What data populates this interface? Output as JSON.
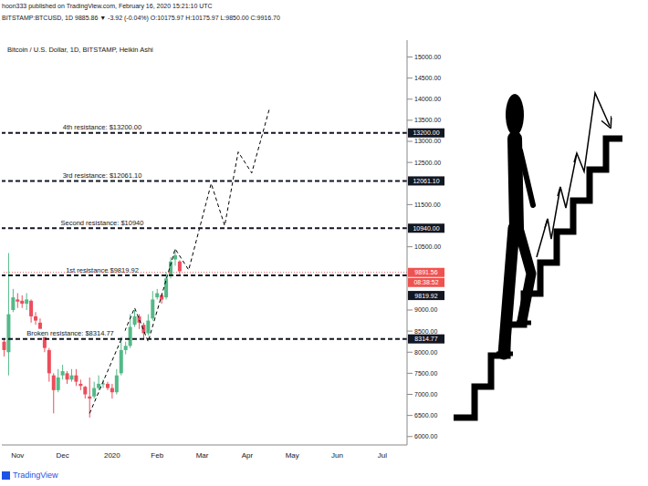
{
  "header": {
    "author_line": "hoon333 published on TradingView.com, February 16, 2020 15:21:10 UTC",
    "symbol_line": "BITSTAMP:BTCUSD, 1D 9885.86 ▼ -3.92 (-0.04%) O:10175.97 H:10175.97 L:9850.00 C:9916.70"
  },
  "footer": "TradingView",
  "chart_data": {
    "type": "candlestick",
    "title": "Bitcoin / U.S. Dollar, 1D, BITSTAMP, Heikin Ashi",
    "categories": [
      null,
      null,
      null,
      "Nov",
      null,
      null,
      null,
      null,
      null,
      null,
      null,
      null,
      null,
      "Dec",
      null,
      null,
      null,
      null,
      null,
      null,
      null,
      null,
      null,
      null,
      "2020",
      null,
      null,
      null,
      null,
      null,
      null,
      null,
      null,
      null,
      "Feb",
      null,
      null,
      null,
      null,
      null,
      null,
      null,
      null,
      null,
      "Mar",
      null,
      null,
      null,
      null,
      null,
      null,
      null,
      null,
      null,
      "Apr",
      null,
      null,
      null,
      null,
      null,
      null,
      null,
      null,
      null,
      "May",
      null,
      null,
      null,
      null,
      null,
      null,
      null,
      null,
      null,
      "Jun",
      null,
      null,
      null,
      null,
      null,
      null,
      null,
      null,
      null,
      "Jul",
      null,
      null,
      null,
      null,
      null
    ],
    "series": [
      {
        "type": "candlestick",
        "open": [
          8250,
          8000,
          9000,
          9250,
          9220,
          9150,
          9220,
          8850,
          8700,
          8450,
          8050,
          7450,
          7100,
          7450,
          7500,
          7350,
          7450,
          7250,
          7180,
          6950,
          6950,
          7150,
          7250,
          7250,
          7150,
          7050,
          7500,
          8050,
          8150,
          8650,
          8850,
          8650,
          8450,
          8800,
          9300,
          9350,
          9300,
          9800,
          10200,
          10150,
          null,
          null,
          null,
          null,
          null,
          null,
          null,
          null,
          null,
          null,
          null,
          null,
          null,
          null,
          null,
          null,
          null,
          null,
          null,
          null,
          null,
          null,
          null,
          null,
          null,
          null,
          null,
          null,
          null,
          null,
          null,
          null,
          null,
          null,
          null,
          null,
          null,
          null,
          null,
          null,
          null,
          null,
          null,
          null,
          null,
          null,
          null,
          null,
          null,
          null
        ],
        "high": [
          8300,
          10350,
          9500,
          9400,
          9350,
          9400,
          9250,
          8950,
          8800,
          8500,
          8100,
          7500,
          7600,
          7700,
          7550,
          7600,
          7600,
          7350,
          7200,
          7400,
          7300,
          7450,
          7350,
          7300,
          7250,
          7600,
          8400,
          8250,
          8900,
          9000,
          8900,
          8700,
          8900,
          9450,
          9500,
          9400,
          9900,
          10250,
          10450,
          10180,
          null,
          null,
          null,
          null,
          null,
          null,
          null,
          null,
          null,
          null,
          null,
          null,
          null,
          null,
          null,
          null,
          null,
          null,
          null,
          null,
          null,
          null,
          null,
          null,
          null,
          null,
          null,
          null,
          null,
          null,
          null,
          null,
          null,
          null,
          null,
          null,
          null,
          null,
          null,
          null,
          null,
          null,
          null,
          null,
          null,
          null,
          null,
          null,
          null,
          null
        ],
        "low": [
          7900,
          7450,
          8950,
          9050,
          9050,
          9000,
          8700,
          8650,
          8400,
          8000,
          7300,
          6550,
          7050,
          7350,
          7250,
          7300,
          7200,
          7100,
          6900,
          6450,
          6900,
          7100,
          7150,
          7100,
          6900,
          7000,
          7450,
          7950,
          8100,
          8600,
          8550,
          8300,
          8400,
          8750,
          9250,
          9150,
          9250,
          9750,
          10050,
          9850,
          null,
          null,
          null,
          null,
          null,
          null,
          null,
          null,
          null,
          null,
          null,
          null,
          null,
          null,
          null,
          null,
          null,
          null,
          null,
          null,
          null,
          null,
          null,
          null,
          null,
          null,
          null,
          null,
          null,
          null,
          null,
          null,
          null,
          null,
          null,
          null,
          null,
          null,
          null,
          null,
          null,
          null,
          null,
          null,
          null,
          null,
          null,
          null,
          null,
          null
        ],
        "close": [
          8050,
          8900,
          9300,
          9200,
          9150,
          9250,
          8850,
          8750,
          8500,
          8100,
          7500,
          7100,
          7400,
          7550,
          7350,
          7450,
          7300,
          7200,
          7000,
          6900,
          7150,
          7250,
          7260,
          7150,
          7050,
          7450,
          8050,
          8150,
          8600,
          8850,
          8700,
          8450,
          8750,
          9250,
          9400,
          9250,
          9750,
          10150,
          10300,
          9920,
          null,
          null,
          null,
          null,
          null,
          null,
          null,
          null,
          null,
          null,
          null,
          null,
          null,
          null,
          null,
          null,
          null,
          null,
          null,
          null,
          null,
          null,
          null,
          null,
          null,
          null,
          null,
          null,
          null,
          null,
          null,
          null,
          null,
          null,
          null,
          null,
          null,
          null,
          null,
          null,
          null,
          null,
          null,
          null,
          null,
          null,
          null,
          null,
          null,
          null
        ],
        "colors": [
          "#eb4d5c",
          "#53b987",
          "#53b987",
          "#eb4d5c",
          "#eb4d5c",
          "#53b987",
          "#eb4d5c",
          "#eb4d5c",
          "#eb4d5c",
          "#eb4d5c",
          "#eb4d5c",
          "#eb4d5c",
          "#53b987",
          "#53b987",
          "#eb4d5c",
          "#53b987",
          "#eb4d5c",
          "#eb4d5c",
          "#eb4d5c",
          "#eb4d5c",
          "#53b987",
          "#53b987",
          "#53b987",
          "#eb4d5c",
          "#eb4d5c",
          "#53b987",
          "#53b987",
          "#53b987",
          "#53b987",
          "#53b987",
          "#eb4d5c",
          "#eb4d5c",
          "#53b987",
          "#53b987",
          "#53b987",
          "#eb4d5c",
          "#53b987",
          "#53b987",
          "#53b987",
          "#eb4d5c",
          null,
          null,
          null,
          null,
          null,
          null,
          null,
          null,
          null,
          null,
          null,
          null,
          null,
          null,
          null,
          null,
          null,
          null,
          null,
          null,
          null,
          null,
          null,
          null,
          null,
          null,
          null,
          null,
          null,
          null,
          null,
          null,
          null,
          null,
          null,
          null,
          null,
          null,
          null,
          null,
          null,
          null,
          null,
          null,
          null,
          null,
          null,
          null,
          null,
          null
        ]
      },
      {
        "type": "line",
        "line_style": "dashed",
        "color": "#000000",
        "values": [
          null,
          null,
          null,
          null,
          null,
          null,
          null,
          null,
          null,
          null,
          null,
          null,
          null,
          null,
          null,
          null,
          null,
          null,
          null,
          6550,
          null,
          null,
          null,
          null,
          null,
          null,
          null,
          null,
          null,
          9050,
          null,
          null,
          8250,
          null,
          null,
          null,
          null,
          null,
          10450,
          null,
          null,
          9950,
          null,
          null,
          null,
          null,
          12000,
          null,
          null,
          11000,
          null,
          null,
          12750,
          null,
          null,
          12250,
          null,
          null,
          null,
          13800,
          null,
          null,
          null,
          null,
          null,
          null,
          null,
          null,
          null,
          null,
          null,
          null,
          null,
          null,
          null,
          null,
          null,
          null,
          null,
          null,
          null,
          null,
          null,
          null,
          null,
          null,
          null,
          null,
          null,
          null
        ]
      }
    ],
    "ylim": [
      5800,
      15400
    ],
    "yticks": [
      {
        "value": 6000,
        "label": "6000.00"
      },
      {
        "value": 6500,
        "label": "6500.00"
      },
      {
        "value": 7000,
        "label": "7000.00"
      },
      {
        "value": 7500,
        "label": "7500.00"
      },
      {
        "value": 8000,
        "label": "8000.00"
      },
      {
        "value": 8500,
        "label": "8500.00"
      },
      {
        "value": 9000,
        "label": "9000.00"
      },
      {
        "value": 10500,
        "label": "10500.00"
      },
      {
        "value": 11500,
        "label": "11500.00"
      },
      {
        "value": 12500,
        "label": "12500.00"
      },
      {
        "value": 13000,
        "label": "13000.00"
      },
      {
        "value": 13500,
        "label": "13500.00"
      },
      {
        "value": 14000,
        "label": "14000.00"
      },
      {
        "value": 14500,
        "label": "14500.00"
      },
      {
        "value": 15000,
        "label": "15000.00"
      }
    ],
    "grid": false,
    "resistances": [
      {
        "value": 8314.77,
        "label": "Broken resistance: $8314.77",
        "axis_label": "8314.77"
      },
      {
        "value": 9819.92,
        "label": "1st resistance $9819.92",
        "axis_label": "9819.92"
      },
      {
        "value": 10940,
        "label": "Second resistance: $10940",
        "axis_label": "10940.00"
      },
      {
        "value": 12061.1,
        "label": "3rd resistance: $12061.10",
        "axis_label": "12061.10"
      },
      {
        "value": 13200,
        "label": "4th resistance: $13200.00",
        "axis_label": "13200.00"
      }
    ],
    "current_price": {
      "value": 9891.56,
      "label": "9891.56",
      "countdown": "08:38:52",
      "color": "#ef5350"
    }
  }
}
